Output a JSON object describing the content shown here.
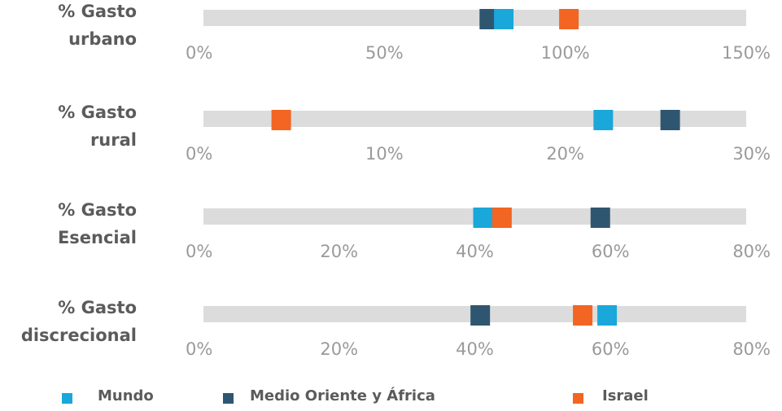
{
  "chart_data": {
    "type": "scatter",
    "series": [
      {
        "name": "Mundo",
        "color": "#1aa7da"
      },
      {
        "name": "Medio Oriente y África",
        "color": "#2f5670"
      },
      {
        "name": "Israel",
        "color": "#f26522"
      }
    ],
    "rows": [
      {
        "label_lines": [
          "% Gasto",
          "urbano"
        ],
        "ticks": [
          "0%",
          "50%",
          "100%",
          "150%"
        ],
        "xlim": [
          0,
          150
        ],
        "values": {
          "Mundo": 83,
          "Medio Oriente y África": 79,
          "Israel": 101
        }
      },
      {
        "label_lines": [
          "% Gasto",
          "rural"
        ],
        "ticks": [
          "0%",
          "10%",
          "20%",
          "30%"
        ],
        "xlim": [
          0,
          30
        ],
        "values": {
          "Mundo": 22.1,
          "Medio Oriente y África": 25.8,
          "Israel": 4.3
        }
      },
      {
        "label_lines": [
          "% Gasto",
          "Esencial"
        ],
        "ticks": [
          "0%",
          "20%",
          "40%",
          "60%",
          "80%"
        ],
        "xlim": [
          0,
          80
        ],
        "values": {
          "Mundo": 41.2,
          "Medio Oriente y África": 58.5,
          "Israel": 44
        }
      },
      {
        "label_lines": [
          "% Gasto",
          "discrecional"
        ],
        "ticks": [
          "0%",
          "20%",
          "40%",
          "60%",
          "80%"
        ],
        "xlim": [
          0,
          80
        ],
        "values": {
          "Mundo": 59.5,
          "Medio Oriente y África": 40.8,
          "Israel": 55.9
        }
      }
    ],
    "legend": [
      "Mundo",
      "Medio Oriente y África",
      "Israel"
    ],
    "legend_position": "bottom",
    "grid": false
  }
}
